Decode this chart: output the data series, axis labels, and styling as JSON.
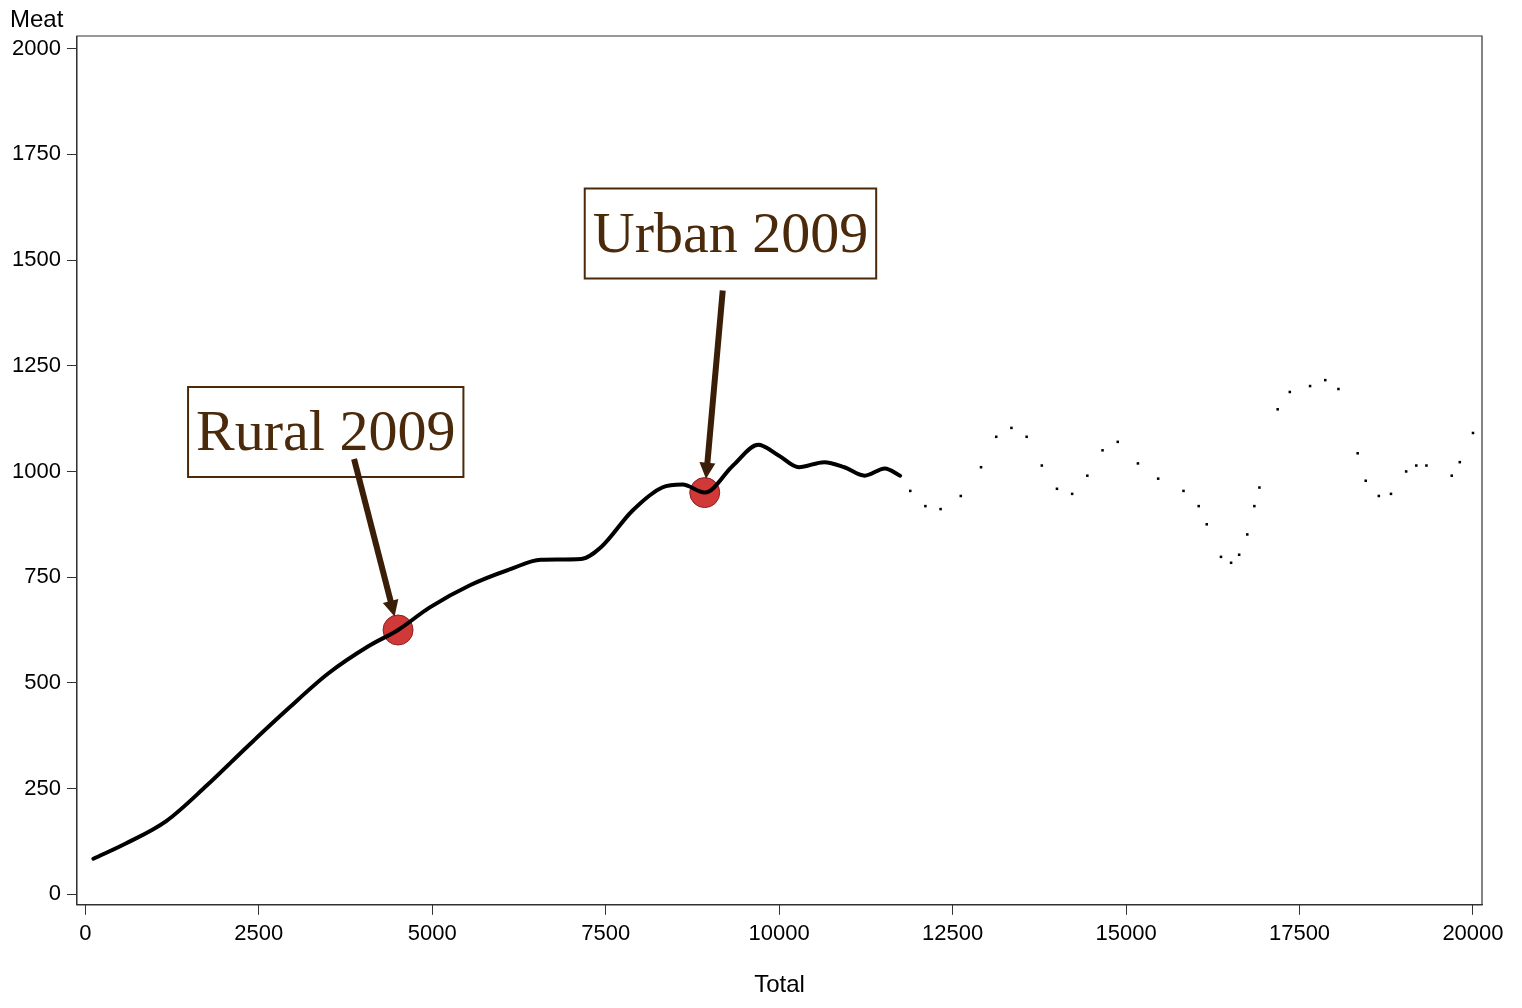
{
  "chart_data": {
    "type": "line",
    "xlabel": "Total",
    "ylabel": "Meat",
    "xlim": [
      -120,
      20130
    ],
    "ylim": [
      -25,
      2030
    ],
    "xticks": [
      0,
      2500,
      5000,
      7500,
      10000,
      12500,
      15000,
      17500,
      20000
    ],
    "yticks": [
      0,
      250,
      500,
      750,
      1000,
      1250,
      1500,
      1750,
      2000
    ],
    "grid": false,
    "legend": false,
    "series": [
      {
        "color": "#000000",
        "marker": "none",
        "line_style": "solid",
        "x": [
          117,
          584,
          1167,
          1750,
          2334,
          2918,
          3501,
          4085,
          4508,
          4960,
          5544,
          6127,
          6565,
          7148,
          7440,
          7878,
          8315,
          8607,
          8928,
          9336,
          9701,
          9993,
          10284,
          10649,
          10941,
          11233,
          11524,
          11743
        ],
        "values": [
          84,
          120,
          173,
          257,
          349,
          438,
          522,
          587,
          625,
          678,
          731,
          769,
          791,
          793,
          822,
          906,
          962,
          969,
          950,
          1014,
          1063,
          1038,
          1010,
          1022,
          1010,
          990,
          1007,
          990
        ]
      },
      {
        "type": "scatter",
        "color": "#000000",
        "marker": "square",
        "x": [
          11890,
          12108,
          12327,
          12618,
          12910,
          13129,
          13348,
          13567,
          13786,
          14004,
          14223,
          14442,
          14661,
          14880,
          15171,
          15463,
          15828,
          16047,
          16163,
          16368,
          16514,
          16630,
          16747,
          16849,
          16922,
          17185,
          17360,
          17652,
          17871,
          18061,
          18338,
          18454,
          18643,
          18818,
          19037,
          19183,
          19329,
          19694,
          19810,
          20000
        ],
        "values": [
          954,
          918,
          911,
          942,
          1010,
          1082,
          1103,
          1082,
          1014,
          959,
          947,
          990,
          1050,
          1070,
          1019,
          983,
          954,
          918,
          875,
          798,
          784,
          803,
          851,
          918,
          962,
          1147,
          1188,
          1202,
          1216,
          1195,
          1043,
          978,
          942,
          947,
          1000,
          1014,
          1014,
          990,
          1022,
          1091
        ]
      },
      {
        "type": "scatter",
        "color": "#d13838",
        "marker": "circle",
        "x": [
          4508,
          8928
        ],
        "values": [
          625,
          950
        ]
      }
    ],
    "annotations": [
      "Rural 2009",
      "Urban 2009"
    ]
  }
}
